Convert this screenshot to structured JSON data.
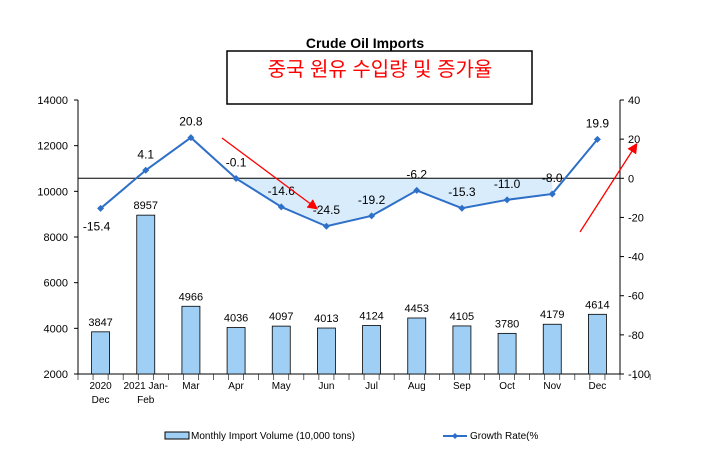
{
  "chart_data": {
    "type": "bar+line",
    "title": "Crude Oil Imports",
    "subtitle": "중국 원유 수입량 및 증가율",
    "categories": [
      [
        "2020",
        "Dec"
      ],
      [
        "2021 Jan-",
        "Feb"
      ],
      [
        "Mar"
      ],
      [
        "Apr"
      ],
      [
        "May"
      ],
      [
        "Jun"
      ],
      [
        "Jul"
      ],
      [
        "Aug"
      ],
      [
        "Sep"
      ],
      [
        "Oct"
      ],
      [
        "Nov"
      ],
      [
        "Dec"
      ]
    ],
    "series": [
      {
        "name": "Monthly Import Volume (10,000 tons)",
        "type": "bar",
        "axis": "left",
        "color": "#9fcff5",
        "values": [
          3847,
          8957,
          4966,
          4036,
          4097,
          4013,
          4124,
          4453,
          4105,
          3780,
          4179,
          4614
        ]
      },
      {
        "name": "Growth Rate(%",
        "type": "line",
        "axis": "right",
        "color": "#2e6fc7",
        "values": [
          -15.4,
          4.1,
          20.8,
          -0.1,
          -14.6,
          -24.5,
          -19.2,
          -6.2,
          -15.3,
          -11.0,
          -8.0,
          19.9
        ]
      }
    ],
    "left_axis": {
      "min": 2000,
      "max": 14000,
      "ticks": [
        "14000",
        "12000",
        "10000",
        "8000",
        "6000",
        "4000",
        "2000"
      ]
    },
    "right_axis": {
      "min": -100,
      "max": 40,
      "ticks": [
        "40",
        "20",
        "0",
        "-20",
        "-40",
        "-60",
        "-80",
        "-100"
      ]
    },
    "legend": "bottom"
  }
}
